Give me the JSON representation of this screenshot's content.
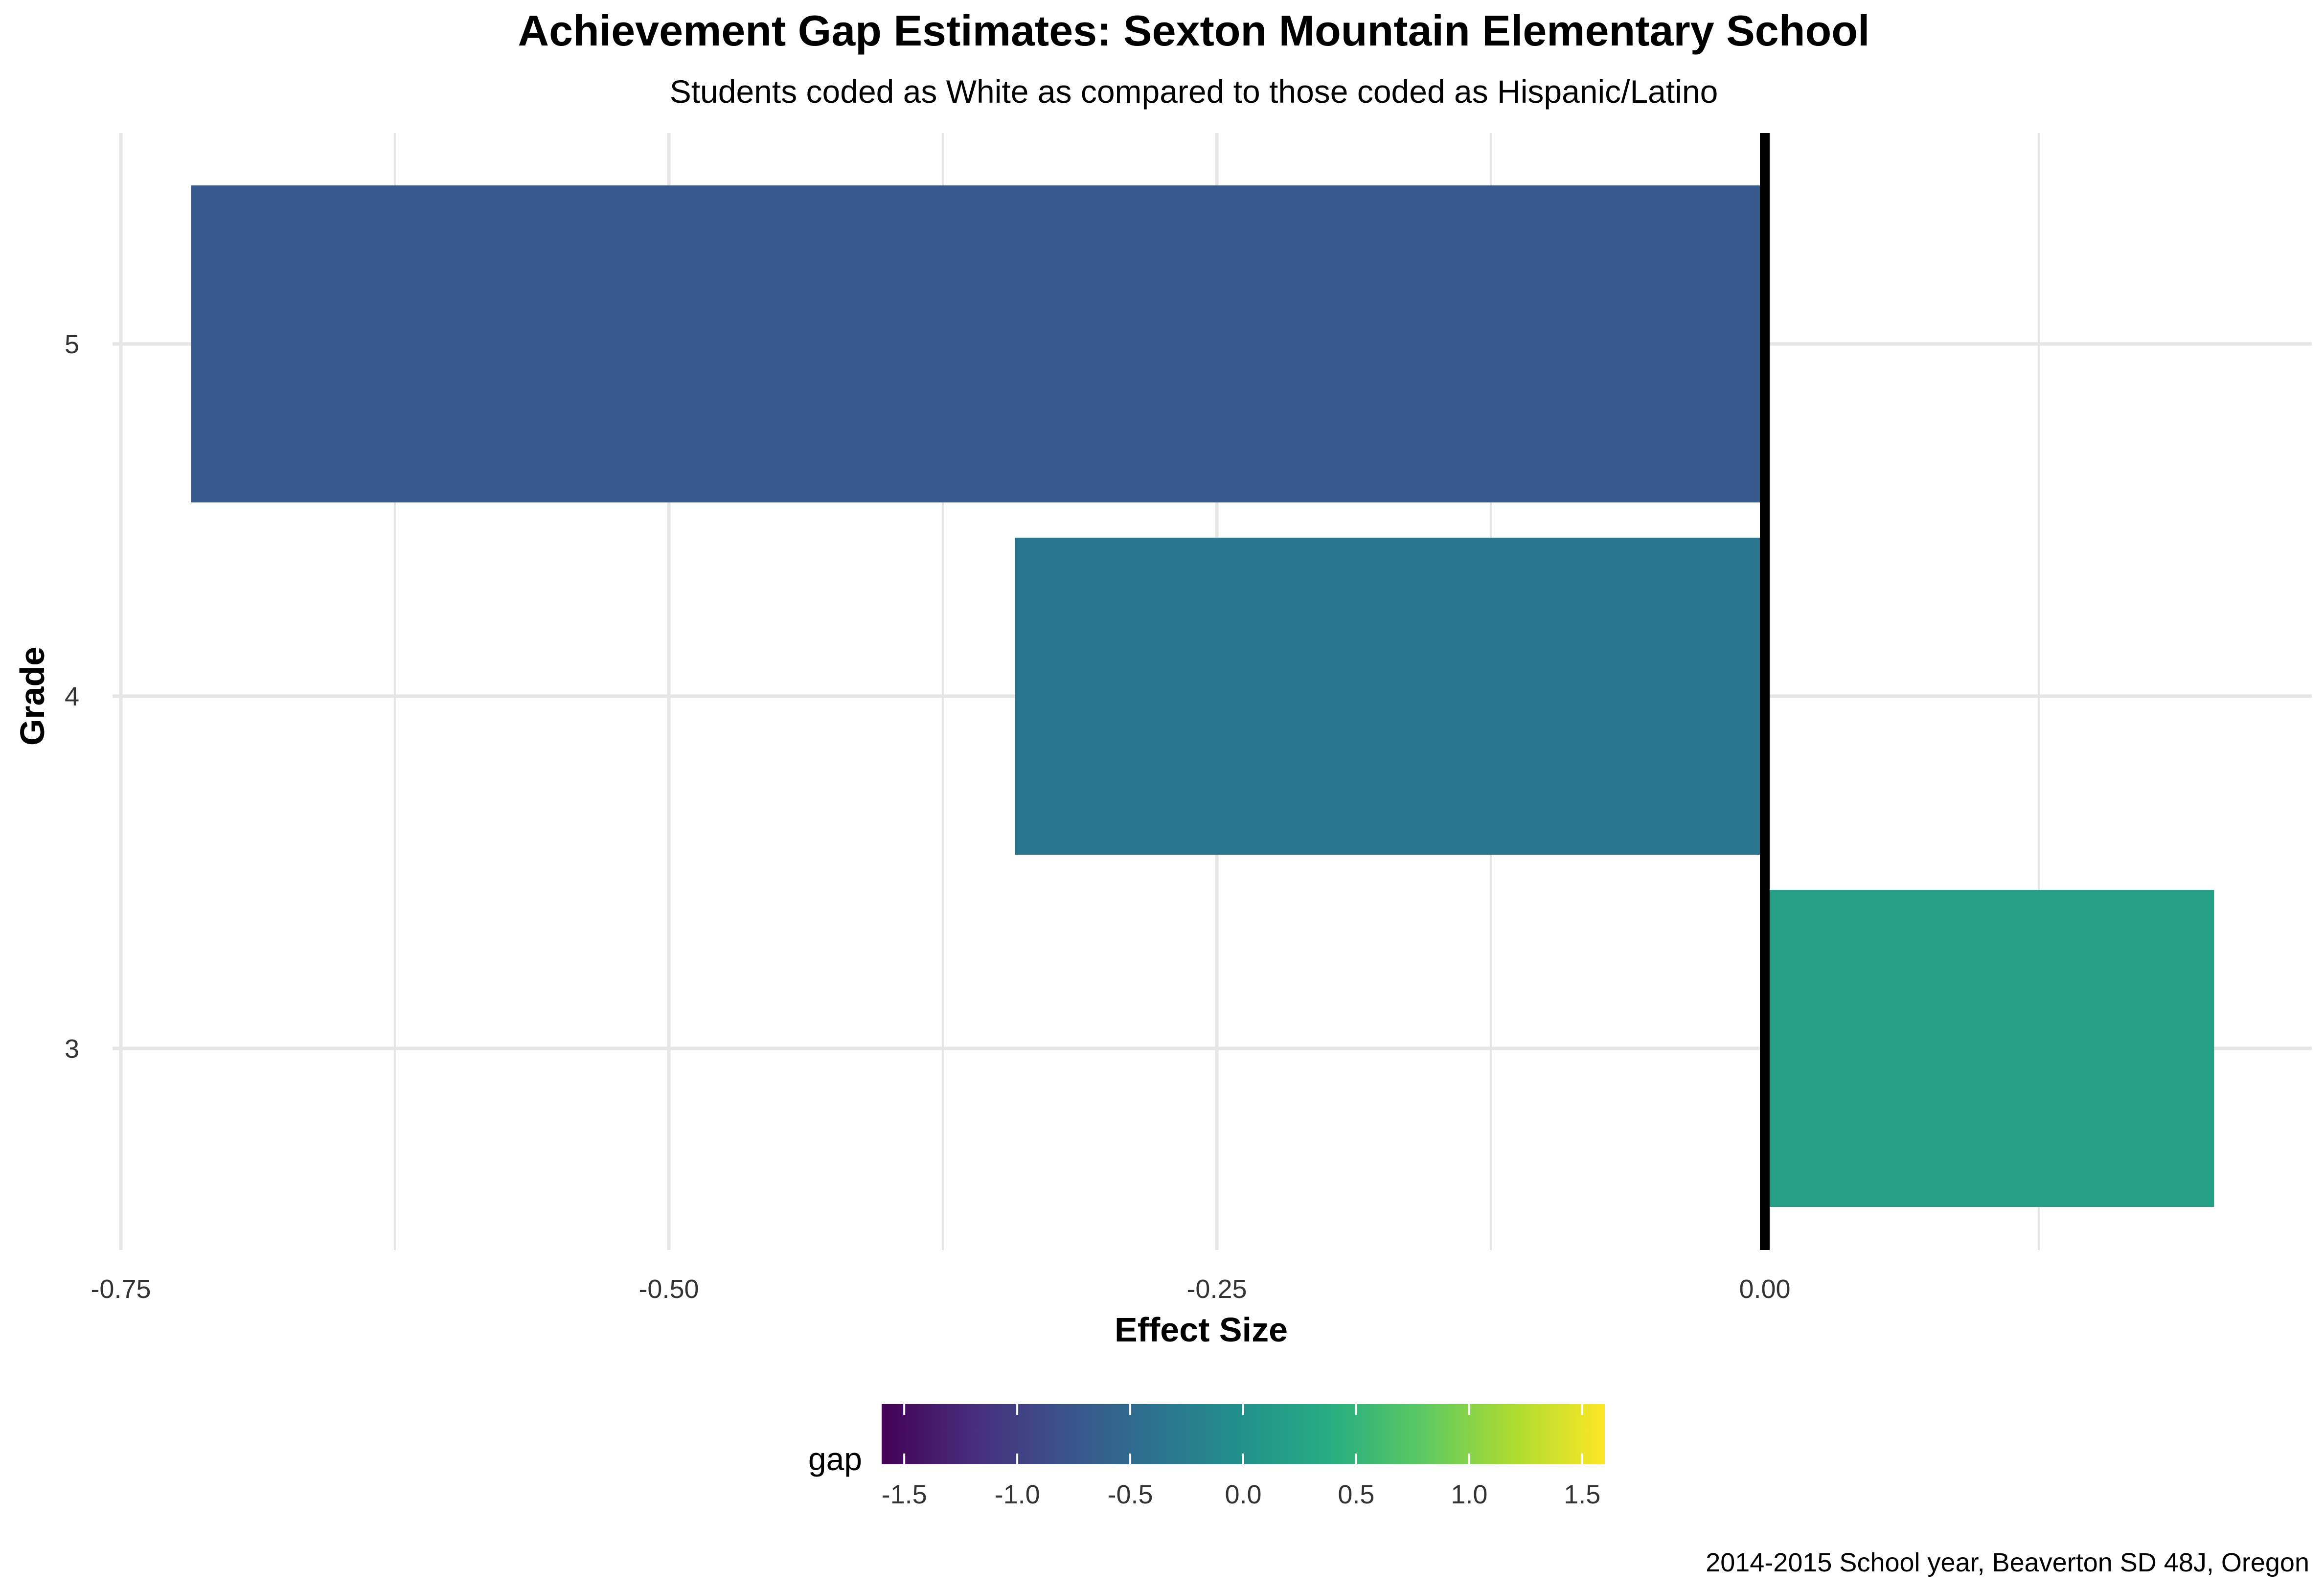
{
  "chart_data": {
    "type": "bar",
    "orientation": "horizontal",
    "title": "Achievement Gap Estimates: Sexton Mountain Elementary School",
    "subtitle": "Students coded as White as compared to those coded as Hispanic/Latino",
    "xlabel": "Effect Size",
    "ylabel": "Grade",
    "caption": "2014-2015 School year, Beaverton SD 48J, Oregon",
    "categories": [
      "3",
      "4",
      "5"
    ],
    "values": [
      0.205,
      -0.342,
      -0.718
    ],
    "xlim": [
      -0.75,
      0.25
    ],
    "x_ticks": [
      -0.75,
      -0.5,
      -0.25,
      0.0
    ],
    "x_tick_labels": [
      "-0.75",
      "-0.50",
      "-0.25",
      "0.00"
    ],
    "reference_line": 0,
    "grid": true,
    "fill_by": "gap",
    "legend": {
      "title": "gap",
      "position": "bottom",
      "type": "colorbar",
      "palette": "viridis",
      "limits": [
        -1.6,
        1.6
      ],
      "ticks": [
        -1.5,
        -1.0,
        -0.5,
        0.0,
        0.5,
        1.0,
        1.5
      ],
      "tick_labels": [
        "-1.5",
        "-1.0",
        "-0.5",
        "0.0",
        "0.5",
        "1.0",
        "1.5"
      ]
    },
    "colors": {
      "grid": "#e6e6e6",
      "reference_line": "#000000",
      "background": "#ffffff"
    }
  }
}
